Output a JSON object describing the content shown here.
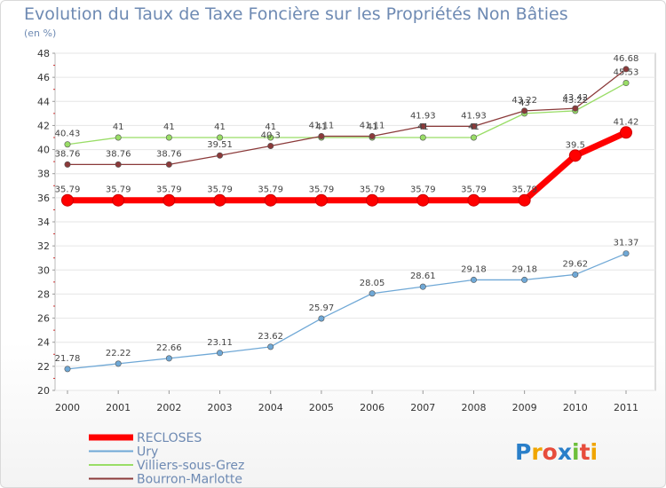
{
  "chart_data": {
    "type": "line",
    "title": "Evolution du Taux de Taxe Foncière sur les Propriétés Non Bâties",
    "subtitle": "(en %)",
    "categories": [
      "2000",
      "2001",
      "2002",
      "2003",
      "2004",
      "2005",
      "2006",
      "2007",
      "2008",
      "2009",
      "2010",
      "2011"
    ],
    "ylim": [
      20,
      48
    ],
    "yticks": [
      20,
      22,
      24,
      26,
      28,
      30,
      32,
      34,
      36,
      38,
      40,
      42,
      44,
      46,
      48
    ],
    "series": [
      {
        "name": "RECLOSES",
        "color": "#ff0000",
        "values": [
          35.79,
          35.79,
          35.79,
          35.79,
          35.79,
          35.79,
          35.79,
          35.79,
          35.79,
          35.79,
          39.5,
          41.42
        ],
        "labels": [
          "35.79",
          "35.79",
          "35.79",
          "35.79",
          "35.79",
          "35.79",
          "35.79",
          "35.79",
          "35.79",
          "35.79",
          "39.5",
          "41.42"
        ]
      },
      {
        "name": "Ury",
        "color": "#6fa8d6",
        "values": [
          21.78,
          22.22,
          22.66,
          23.11,
          23.62,
          25.97,
          28.05,
          28.61,
          29.18,
          29.18,
          29.62,
          31.37
        ],
        "labels": [
          "21.78",
          "22.22",
          "22.66",
          "23.11",
          "23.62",
          "25.97",
          "28.05",
          "28.61",
          "29.18",
          "29.18",
          "29.62",
          "31.37"
        ]
      },
      {
        "name": "Villiers-sous-Grez",
        "color": "#99dd66",
        "values": [
          40.43,
          41,
          41,
          41,
          41,
          41,
          41,
          41,
          41,
          43,
          43.22,
          45.53
        ],
        "labels": [
          "40.43",
          "41",
          "41",
          "41",
          "41",
          "41",
          "41",
          "41",
          "41",
          "43",
          "43.22",
          "45.53"
        ]
      },
      {
        "name": "Bourron-Marlotte",
        "color": "#8b3a3a",
        "values": [
          38.76,
          38.76,
          38.76,
          39.51,
          40.3,
          41.11,
          41.11,
          41.93,
          41.93,
          43.22,
          43.42,
          46.68
        ],
        "labels": [
          "38.76",
          "38.76",
          "38.76",
          "39.51",
          "40.3",
          "41.11",
          "41.11",
          "41.93",
          "41.93",
          "43.22",
          "43.42",
          "46.68"
        ]
      }
    ]
  },
  "legend": {
    "items": [
      {
        "name": "RECLOSES",
        "color": "#ff0000",
        "text_color": "#6e8ab3"
      },
      {
        "name": "Ury",
        "color": "#6fa8d6",
        "text_color": "#6e8ab3"
      },
      {
        "name": "Villiers-sous-Grez",
        "color": "#99dd66",
        "text_color": "#6e8ab3"
      },
      {
        "name": "Bourron-Marlotte",
        "color": "#8b3a3a",
        "text_color": "#6e8ab3"
      }
    ]
  },
  "logo": {
    "text": "Proxiti"
  }
}
